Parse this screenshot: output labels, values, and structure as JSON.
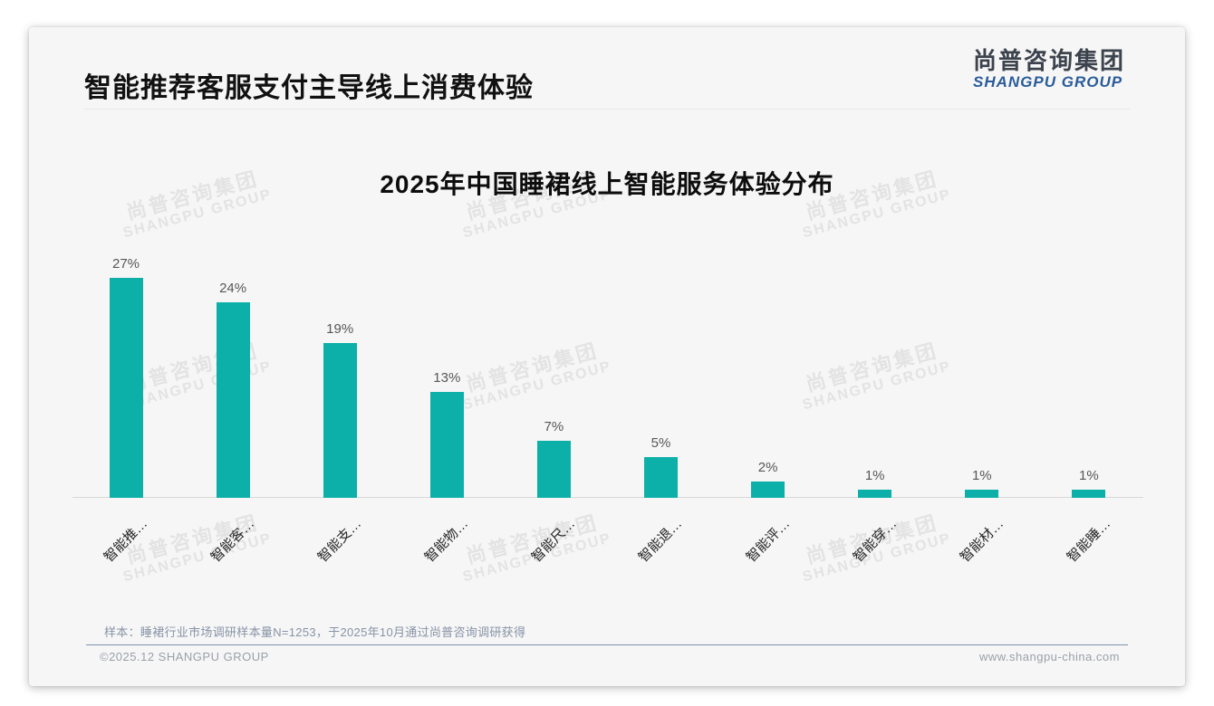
{
  "slide": {
    "title": "智能推荐客服支付主导线上消费体验"
  },
  "logo": {
    "cn": "尚普咨询集团",
    "en": "SHANGPU GROUP"
  },
  "watermark": {
    "line1": "尚普咨询集团",
    "line2": "SHANGPU GROUP"
  },
  "chart_data": {
    "type": "bar",
    "title": "2025年中国睡裙线上智能服务体验分布",
    "categories": [
      "智能推…",
      "智能客…",
      "智能支…",
      "智能物…",
      "智能尺…",
      "智能退…",
      "智能评…",
      "智能穿…",
      "智能材…",
      "智能睡…"
    ],
    "values": [
      27,
      24,
      19,
      13,
      7,
      5,
      2,
      1,
      1,
      1
    ],
    "value_suffix": "%",
    "xlabel": "",
    "ylabel": "",
    "ylim": [
      0,
      30
    ],
    "grid": false,
    "legend": false,
    "bar_color": "#0cb0a8",
    "axis_line_color": "#d8d8d8",
    "value_label_color": "#575757",
    "tick_label_rotation_deg": 45
  },
  "footnote": {
    "text": "样本：睡裙行业市场调研样本量N=1253，于2025年10月通过尚普咨询调研获得"
  },
  "footer": {
    "left": "©2025.12 SHANGPU GROUP",
    "right": "www.shangpu-china.com"
  }
}
